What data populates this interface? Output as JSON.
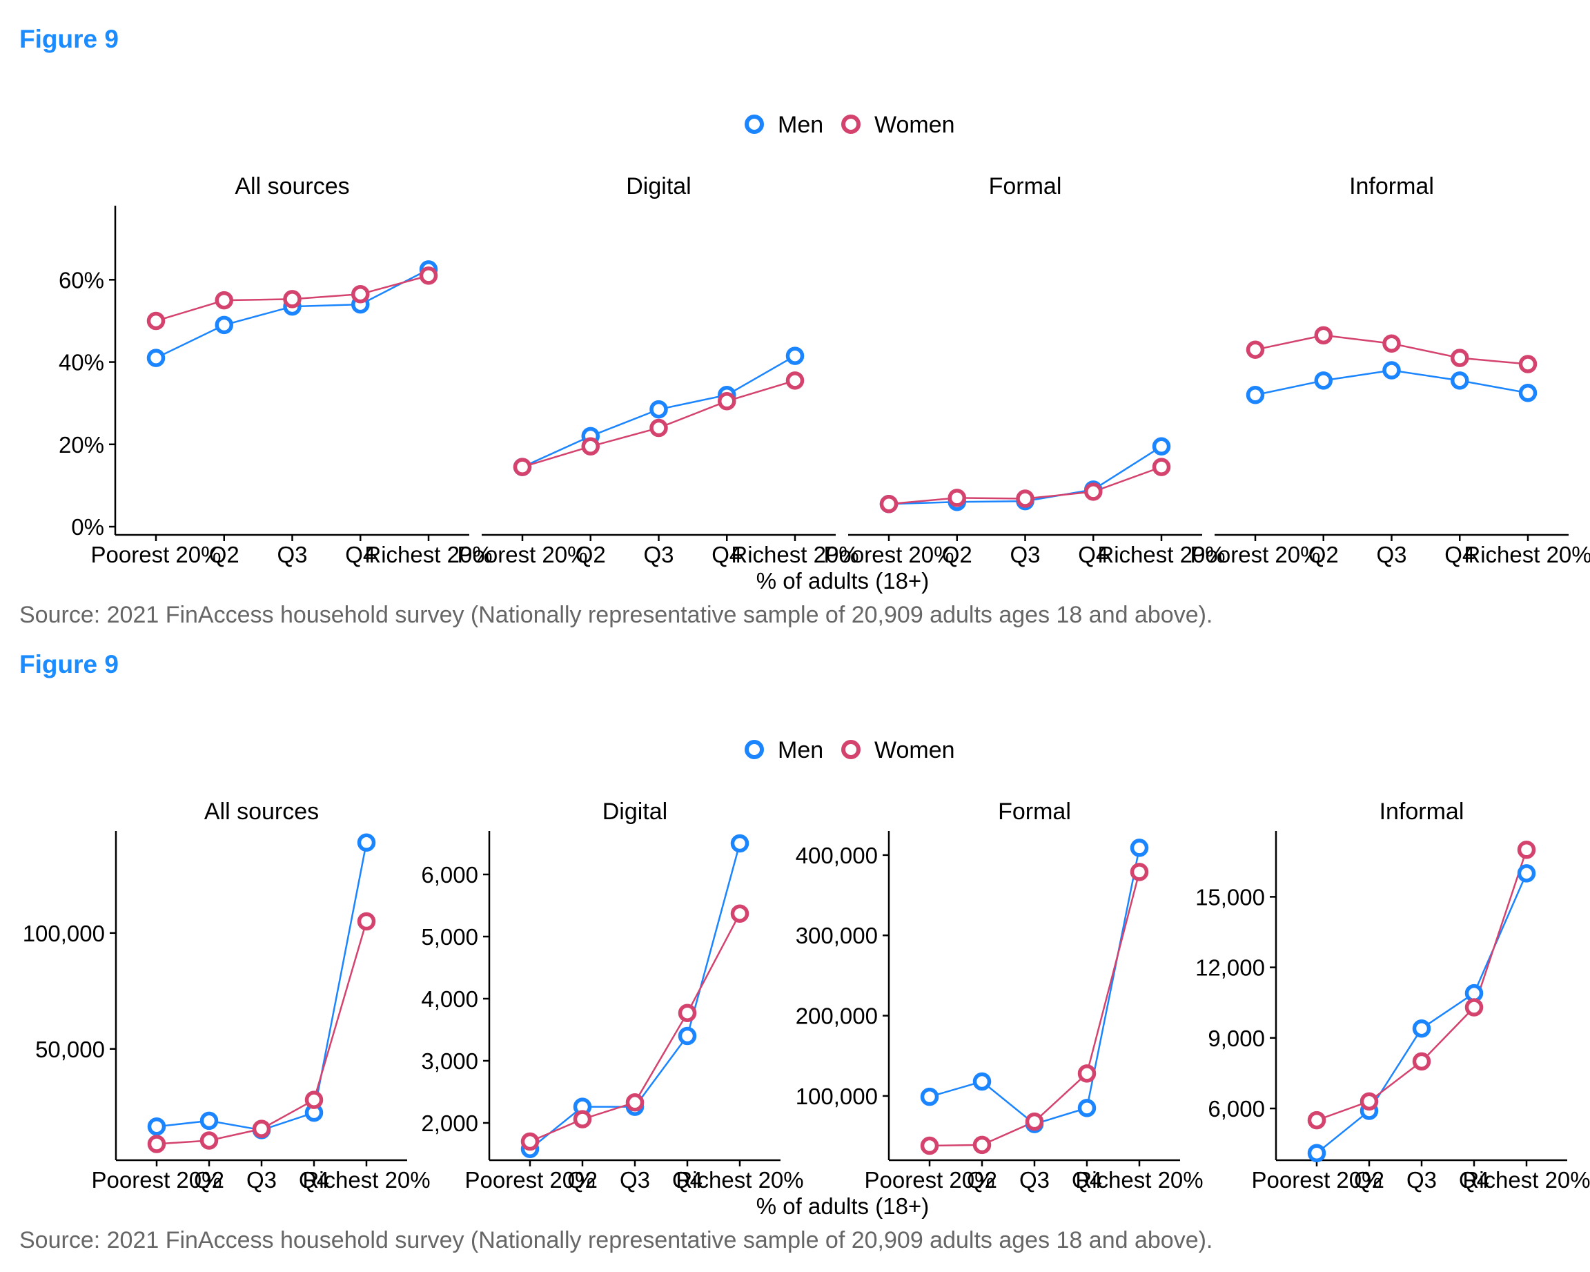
{
  "colors": {
    "men": "#1a85ff",
    "women": "#d4426e",
    "source": "#666666",
    "figure_label": "#1a8cff"
  },
  "figures": [
    {
      "label": "Figure 9",
      "source": "Source: 2021 FinAccess household survey (Nationally representative sample of 20,909 adults ages 18 and above).",
      "legend": [
        "Men",
        "Women"
      ],
      "xlabel": "% of adults (18+)"
    },
    {
      "label": "Figure 9",
      "source": "Source: 2021 FinAccess household survey (Nationally representative sample of 20,909 adults ages 18 and above).",
      "legend": [
        "Men",
        "Women"
      ],
      "xlabel": "% of adults (18+)"
    }
  ],
  "chart_data": [
    {
      "type": "line",
      "facet_shared_y": true,
      "xlabel": "% of adults (18+)",
      "legend": [
        "Men",
        "Women"
      ],
      "legend_position": "top",
      "categories": [
        "Poorest 20%",
        "Q2",
        "Q3",
        "Q4",
        "Richest 20%"
      ],
      "ylim": [
        -2,
        78
      ],
      "yticks": [
        0,
        20,
        40,
        60
      ],
      "ytick_labels": [
        "0%",
        "20%",
        "40%",
        "60%"
      ],
      "panels": [
        {
          "title": "All sources",
          "series": [
            {
              "name": "Men",
              "values": [
                41,
                49,
                53.5,
                54,
                62.5
              ]
            },
            {
              "name": "Women",
              "values": [
                50,
                55,
                55.3,
                56.5,
                61
              ]
            }
          ]
        },
        {
          "title": "Digital",
          "series": [
            {
              "name": "Men",
              "values": [
                14.5,
                22,
                28.5,
                32,
                41.5
              ]
            },
            {
              "name": "Women",
              "values": [
                14.5,
                19.5,
                24,
                30.5,
                35.5
              ]
            }
          ]
        },
        {
          "title": "Formal",
          "series": [
            {
              "name": "Men",
              "values": [
                5.5,
                6,
                6.2,
                9,
                19.5
              ]
            },
            {
              "name": "Women",
              "values": [
                5.5,
                7,
                6.8,
                8.5,
                14.5
              ]
            }
          ]
        },
        {
          "title": "Informal",
          "series": [
            {
              "name": "Men",
              "values": [
                32,
                35.5,
                38,
                35.5,
                32.5
              ]
            },
            {
              "name": "Women",
              "values": [
                43,
                46.5,
                44.5,
                41,
                39.5
              ]
            }
          ]
        }
      ]
    },
    {
      "type": "line",
      "facet_shared_y": false,
      "xlabel": "% of adults (18+)",
      "legend": [
        "Men",
        "Women"
      ],
      "legend_position": "top",
      "categories": [
        "Poorest 20%",
        "Q2",
        "Q3",
        "Q4",
        "Richest 20%"
      ],
      "panels": [
        {
          "title": "All sources",
          "ylim": [
            2000,
            144000
          ],
          "yticks": [
            50000,
            100000
          ],
          "ytick_labels": [
            "50,000",
            "100,000"
          ],
          "series": [
            {
              "name": "Men",
              "values": [
                16500,
                19000,
                15000,
                22500,
                139000
              ]
            },
            {
              "name": "Women",
              "values": [
                9000,
                10500,
                15500,
                28000,
                105000
              ]
            }
          ]
        },
        {
          "title": "Digital",
          "ylim": [
            1400,
            6700
          ],
          "yticks": [
            2000,
            3000,
            4000,
            5000,
            6000
          ],
          "ytick_labels": [
            "2,000",
            "3,000",
            "4,000",
            "5,000",
            "6,000"
          ],
          "series": [
            {
              "name": "Men",
              "values": [
                1580,
                2260,
                2260,
                3400,
                6500
              ]
            },
            {
              "name": "Women",
              "values": [
                1700,
                2060,
                2330,
                3770,
                5370
              ]
            }
          ]
        },
        {
          "title": "Formal",
          "ylim": [
            20000,
            430000
          ],
          "yticks": [
            100000,
            200000,
            300000,
            400000
          ],
          "ytick_labels": [
            "100,000",
            "200,000",
            "300,000",
            "400,000"
          ],
          "series": [
            {
              "name": "Men",
              "values": [
                99000,
                118000,
                65000,
                85000,
                409000
              ]
            },
            {
              "name": "Women",
              "values": [
                38000,
                39000,
                68000,
                128000,
                379000
              ]
            }
          ]
        },
        {
          "title": "Informal",
          "ylim": [
            3800,
            17800
          ],
          "yticks": [
            6000,
            9000,
            12000,
            15000
          ],
          "ytick_labels": [
            "6,000",
            "9,000",
            "12,000",
            "15,000"
          ],
          "series": [
            {
              "name": "Men",
              "values": [
                4100,
                5900,
                9400,
                10900,
                16000
              ]
            },
            {
              "name": "Women",
              "values": [
                5500,
                6300,
                8000,
                10300,
                17000
              ]
            }
          ]
        }
      ]
    }
  ]
}
